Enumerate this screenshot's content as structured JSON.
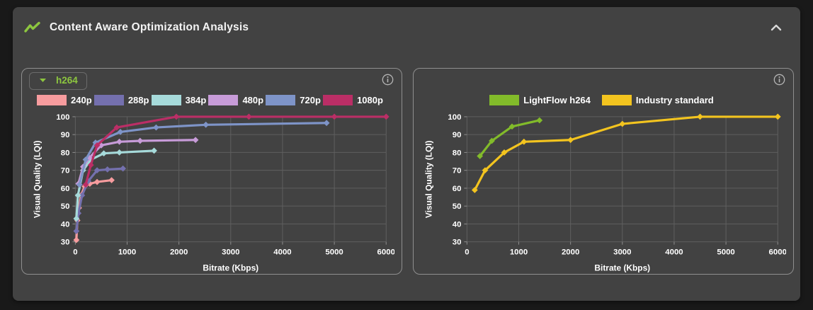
{
  "header": {
    "title": "Content Aware Optimization Analysis",
    "icon": "trend-line-icon",
    "collapse_icon": "chevron-up-icon"
  },
  "left_panel": {
    "codec_dropdown": {
      "value": "h264",
      "arrow_icon": "dropdown-arrow-icon"
    },
    "info_icon": "info-icon"
  },
  "right_panel": {
    "info_icon": "info-icon"
  },
  "colors": {
    "page_bg": "#191919",
    "card_bg": "#424242",
    "panel_border": "#8f8f8f",
    "grid": "#5f5f5f",
    "tick_mark": "#8f8f8f",
    "tick_text": "#ffffff",
    "accent_green": "#8dc63f",
    "icon_gray": "#b5b5b5"
  },
  "chart_data": [
    {
      "type": "line",
      "title": "",
      "xlabel": "Bitrate (Kbps)",
      "ylabel": "Visual Quality (LQI)",
      "xlim": [
        0,
        6000
      ],
      "ylim": [
        30,
        100
      ],
      "x_ticks": [
        0,
        1000,
        2000,
        3000,
        4000,
        5000,
        6000
      ],
      "y_ticks": [
        30,
        40,
        50,
        60,
        70,
        80,
        90,
        100
      ],
      "grid": true,
      "legend_position": "top",
      "marker": "diamond",
      "series": [
        {
          "name": "240p",
          "color": "#f79c9e",
          "points": [
            [
              20,
              31
            ],
            [
              40,
              42
            ],
            [
              70,
              49
            ],
            [
              110,
              56
            ],
            [
              180,
              61
            ],
            [
              280,
              62.5
            ],
            [
              420,
              63.5
            ],
            [
              700,
              64.5
            ]
          ]
        },
        {
          "name": "288p",
          "color": "#7470ae",
          "points": [
            [
              20,
              36
            ],
            [
              60,
              46
            ],
            [
              130,
              56
            ],
            [
              250,
              64
            ],
            [
              420,
              70
            ],
            [
              620,
              70.5
            ],
            [
              920,
              71
            ]
          ]
        },
        {
          "name": "384p",
          "color": "#a6dada",
          "points": [
            [
              20,
              43
            ],
            [
              50,
              56
            ],
            [
              150,
              70
            ],
            [
              300,
              76
            ],
            [
              550,
              79.5
            ],
            [
              850,
              80
            ],
            [
              1520,
              81
            ]
          ]
        },
        {
          "name": "480p",
          "color": "#c79bd8",
          "points": [
            [
              60,
              62.5
            ],
            [
              150,
              72
            ],
            [
              270,
              77
            ],
            [
              500,
              84
            ],
            [
              850,
              86
            ],
            [
              1250,
              86.5
            ],
            [
              2320,
              87
            ]
          ]
        },
        {
          "name": "720p",
          "color": "#7e94c8",
          "points": [
            [
              80,
              62
            ],
            [
              200,
              76
            ],
            [
              390,
              85.5
            ],
            [
              870,
              91.5
            ],
            [
              1560,
              94
            ],
            [
              2520,
              95.5
            ],
            [
              4850,
              96.5
            ]
          ]
        },
        {
          "name": "1080p",
          "color": "#bb2e66",
          "points": [
            [
              200,
              62
            ],
            [
              300,
              73
            ],
            [
              420,
              84
            ],
            [
              800,
              94
            ],
            [
              1950,
              100
            ],
            [
              3350,
              100
            ],
            [
              5000,
              100
            ],
            [
              6000,
              100
            ]
          ]
        }
      ]
    },
    {
      "type": "line",
      "title": "",
      "xlabel": "Bitrate (Kbps)",
      "ylabel": "Visual Quality (LQI)",
      "xlim": [
        0,
        6000
      ],
      "ylim": [
        30,
        100
      ],
      "x_ticks": [
        0,
        1000,
        2000,
        3000,
        4000,
        5000,
        6000
      ],
      "y_ticks": [
        30,
        40,
        50,
        60,
        70,
        80,
        90,
        100
      ],
      "grid": true,
      "legend_position": "top",
      "marker": "diamond",
      "series": [
        {
          "name": "LightFlow h264",
          "color": "#82bb2a",
          "points": [
            [
              250,
              78
            ],
            [
              480,
              86.5
            ],
            [
              870,
              94.5
            ],
            [
              1400,
              98
            ]
          ]
        },
        {
          "name": "Industry standard",
          "color": "#f3c41f",
          "points": [
            [
              150,
              59
            ],
            [
              350,
              70
            ],
            [
              720,
              80
            ],
            [
              1100,
              86
            ],
            [
              2000,
              87
            ],
            [
              3000,
              96
            ],
            [
              4500,
              100
            ],
            [
              6000,
              100
            ]
          ]
        }
      ]
    }
  ]
}
